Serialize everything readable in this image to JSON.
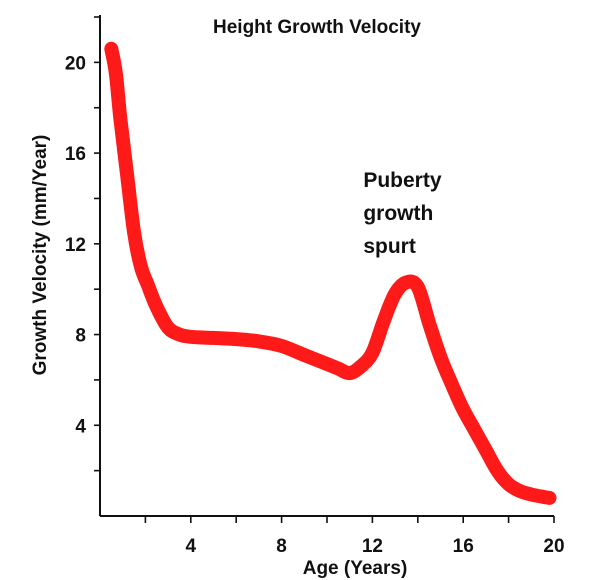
{
  "chart_data": {
    "type": "line",
    "title": "Height Growth Velocity",
    "xlabel": "Age (Years)",
    "ylabel": "Growth Velocity (mm/Year)",
    "xlim": [
      0,
      20
    ],
    "ylim": [
      0,
      22
    ],
    "xticks": [
      4,
      8,
      12,
      16,
      20
    ],
    "yticks": [
      4,
      8,
      12,
      16,
      20
    ],
    "grid": false,
    "line_color": "#ff1a1a",
    "annotation": {
      "lines": [
        "Puberty",
        "growth",
        "spurt"
      ],
      "x": 11.6,
      "y": 14.5
    },
    "series": [
      {
        "x": [
          0.5,
          0.7,
          0.9,
          1.2,
          1.5,
          1.8,
          2.1,
          2.5,
          3.0,
          3.5,
          4.0,
          5.0,
          6.0,
          7.0,
          8.0,
          9.0,
          10.0,
          10.5,
          11.0,
          11.5,
          12.0,
          12.5,
          13.0,
          13.5,
          14.0,
          14.5,
          15.0,
          15.5,
          16.0,
          16.5,
          17.0,
          17.5,
          18.0,
          18.5,
          19.0,
          19.5,
          19.8
        ],
        "y": [
          20.6,
          19.5,
          17.5,
          15.0,
          12.5,
          11.0,
          10.2,
          9.2,
          8.3,
          8.0,
          7.9,
          7.85,
          7.8,
          7.7,
          7.5,
          7.1,
          6.7,
          6.5,
          6.3,
          6.6,
          7.2,
          8.6,
          9.8,
          10.3,
          10.1,
          8.5,
          7.0,
          5.8,
          4.7,
          3.8,
          2.9,
          2.0,
          1.4,
          1.1,
          0.95,
          0.85,
          0.8
        ]
      }
    ]
  }
}
